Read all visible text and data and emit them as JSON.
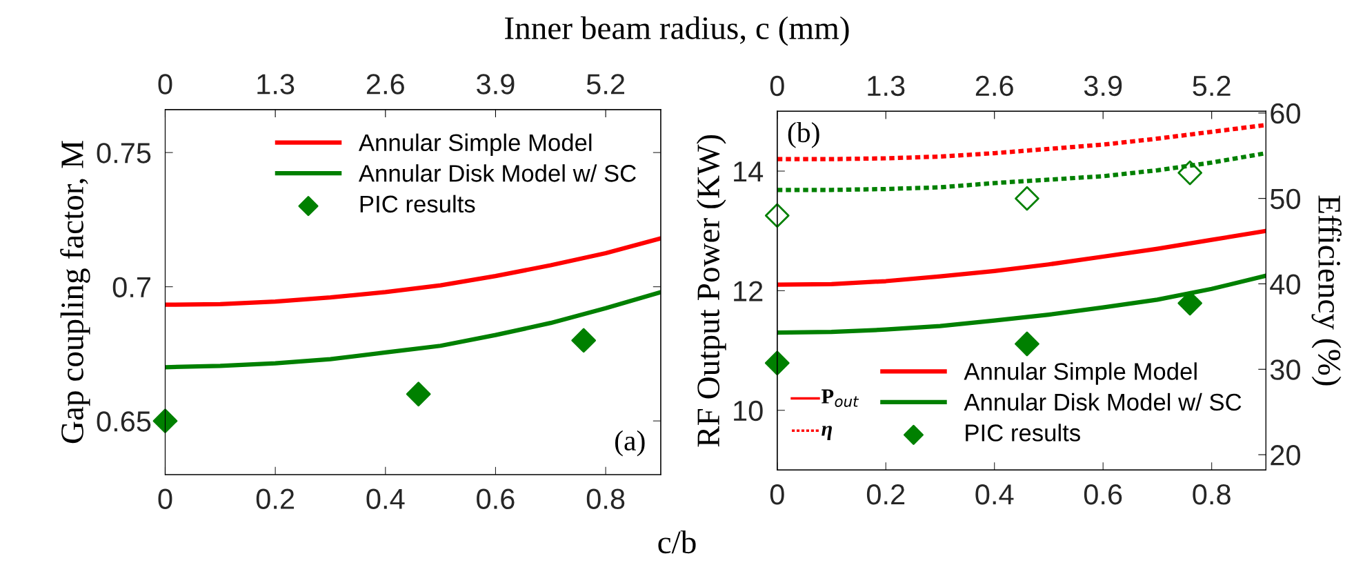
{
  "chart_data": [
    {
      "type": "line",
      "x2label": "Inner beam radius, c (mm)",
      "xlabel": "c/b",
      "ylabel": "Gap coupling factor, M",
      "xlim": [
        0,
        0.9
      ],
      "xticks": [
        0,
        0.2,
        0.4,
        0.6,
        0.8
      ],
      "x2lim": [
        0,
        5.85
      ],
      "x2ticks": [
        0,
        1.3,
        2.6,
        3.9,
        5.2
      ],
      "ylim": [
        0.63,
        0.766
      ],
      "yticks": [
        0.65,
        0.7,
        0.75
      ],
      "grid": false,
      "legend": "top right",
      "annotations": [
        "(a)"
      ],
      "series": [
        {
          "name": "Annular Simple Model",
          "color": "#ff0000",
          "line_style": "solid",
          "x": [
            0,
            0.1,
            0.2,
            0.3,
            0.4,
            0.5,
            0.6,
            0.7,
            0.8,
            0.9
          ],
          "values": [
            0.6933,
            0.6935,
            0.6945,
            0.696,
            0.698,
            0.7005,
            0.704,
            0.708,
            0.7125,
            0.718
          ]
        },
        {
          "name": "Annular Disk Model w/ SC",
          "color": "#008000",
          "line_style": "solid",
          "x": [
            0,
            0.1,
            0.2,
            0.3,
            0.4,
            0.5,
            0.6,
            0.7,
            0.8,
            0.9
          ],
          "values": [
            0.67,
            0.6705,
            0.6715,
            0.673,
            0.6755,
            0.678,
            0.682,
            0.6865,
            0.692,
            0.698
          ]
        },
        {
          "type": "scatter",
          "name": "PIC results",
          "color": "#008000",
          "marker": "diamond",
          "x": [
            0,
            0.46,
            0.76
          ],
          "values": [
            0.65,
            0.66,
            0.68
          ]
        }
      ]
    },
    {
      "type": "line",
      "ylabel": "RF Output Power (KW)",
      "y2label": "Efficiency (%)",
      "xlim": [
        0,
        0.9
      ],
      "xticks": [
        0,
        0.2,
        0.4,
        0.6,
        0.8
      ],
      "x2lim": [
        0,
        5.85
      ],
      "x2ticks": [
        0,
        1.3,
        2.6,
        3.9,
        5.2
      ],
      "ylim": [
        9,
        15
      ],
      "yticks": [
        10,
        12,
        14
      ],
      "y2lim": [
        18.2,
        60.2
      ],
      "y2ticks": [
        20,
        30,
        40,
        50,
        60
      ],
      "grid": false,
      "legend": "bottom right",
      "annotations": [
        "(b)",
        "P$_{out}$",
        "η"
      ],
      "series": [
        {
          "name": "Annular Simple Model",
          "color": "#ff0000",
          "line_style": "solid",
          "x": [
            0,
            0.1,
            0.2,
            0.3,
            0.4,
            0.5,
            0.6,
            0.7,
            0.8,
            0.9
          ],
          "values": [
            12.1,
            12.11,
            12.16,
            12.24,
            12.33,
            12.44,
            12.57,
            12.7,
            12.85,
            13.0
          ]
        },
        {
          "name": "Annular Disk Model w/ SC",
          "color": "#008000",
          "line_style": "solid",
          "x": [
            0,
            0.1,
            0.2,
            0.3,
            0.4,
            0.5,
            0.6,
            0.7,
            0.8,
            0.9
          ],
          "values": [
            11.3,
            11.31,
            11.35,
            11.41,
            11.5,
            11.6,
            11.72,
            11.85,
            12.03,
            12.25
          ]
        },
        {
          "type": "scatter",
          "name": "PIC results",
          "color": "#008000",
          "marker": "diamond",
          "x": [
            0,
            0.46,
            0.76
          ],
          "values": [
            10.79,
            11.11,
            11.79
          ]
        },
        {
          "axis": "y2",
          "color": "#ff0000",
          "line_style": "dotted",
          "x": [
            0,
            0.1,
            0.2,
            0.3,
            0.4,
            0.5,
            0.6,
            0.7,
            0.8,
            0.9
          ],
          "values": [
            54.6,
            54.6,
            54.7,
            54.9,
            55.3,
            55.8,
            56.3,
            57.0,
            57.8,
            58.6
          ]
        },
        {
          "axis": "y2",
          "color": "#008000",
          "line_style": "dotted",
          "x": [
            0,
            0.1,
            0.2,
            0.3,
            0.4,
            0.5,
            0.6,
            0.7,
            0.8,
            0.9
          ],
          "values": [
            51.0,
            51.0,
            51.1,
            51.3,
            51.8,
            52.2,
            52.6,
            53.3,
            54.2,
            55.3
          ]
        },
        {
          "type": "scatter",
          "axis": "y2",
          "color": "#008000",
          "marker": "diamond",
          "x": [
            0,
            0.46,
            0.76
          ],
          "values": [
            48.0,
            50.0,
            53.0
          ]
        }
      ]
    }
  ]
}
